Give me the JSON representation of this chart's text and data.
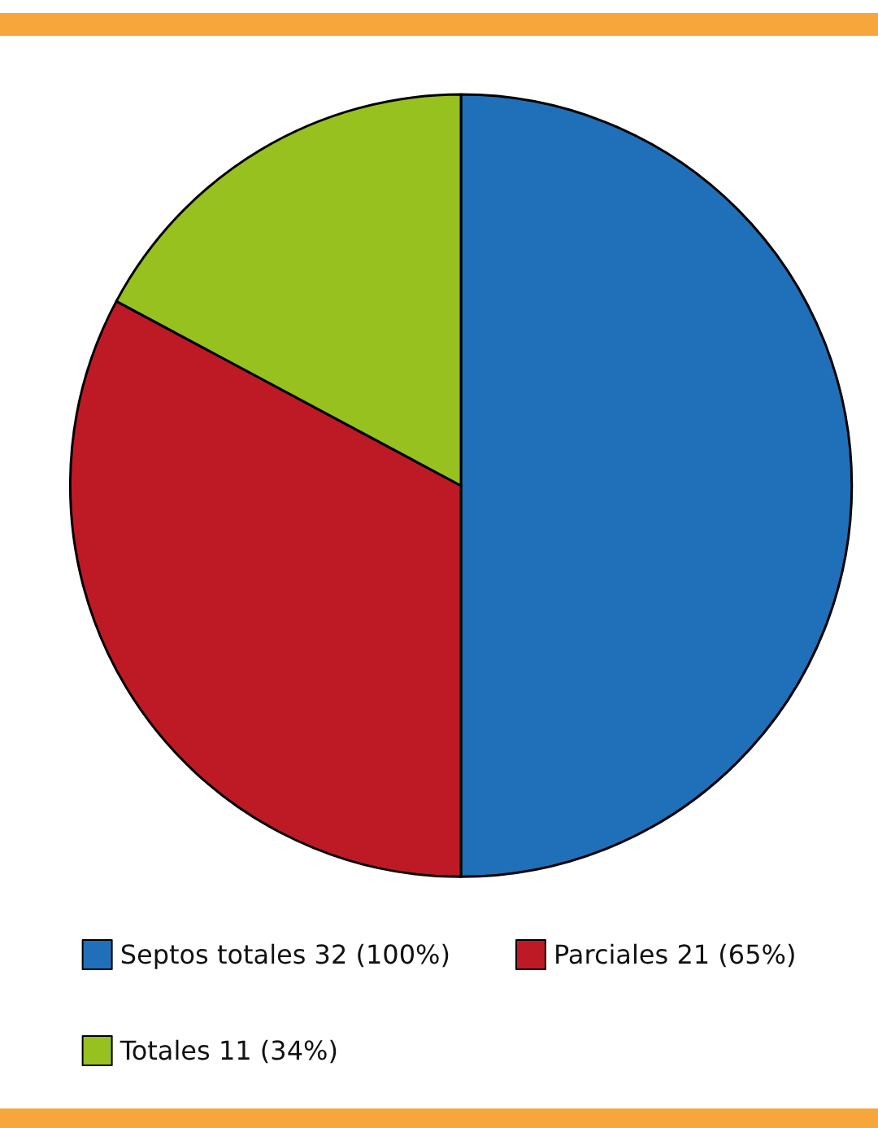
{
  "chart_data": {
    "type": "pie",
    "categories": [
      "Septos totales 32 (100%)",
      "Parciales 21 (65%)",
      "Totales 11 (34%)"
    ],
    "values": [
      32,
      21,
      11
    ],
    "colors": [
      "#1f70b8",
      "#be1a25",
      "#97c11f"
    ],
    "legend": "bottom"
  }
}
